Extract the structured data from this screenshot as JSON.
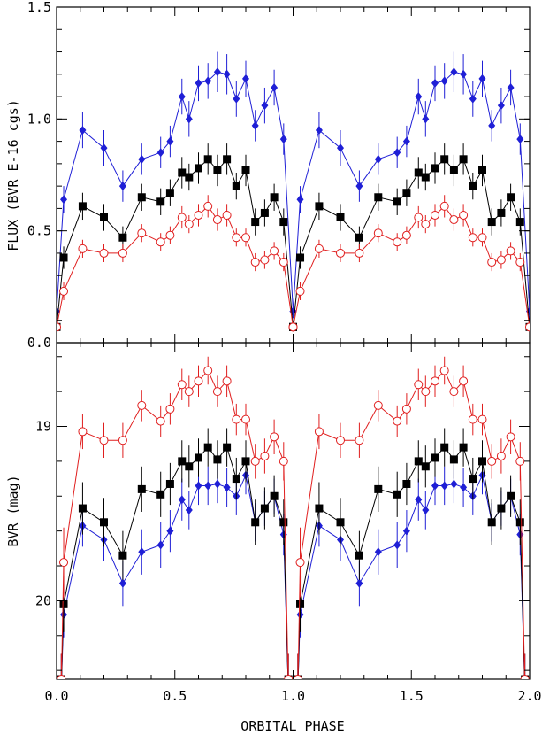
{
  "chart_data": {
    "type": "scatter",
    "xlabel": "ORBITAL PHASE",
    "x_ticks": [
      "0.0",
      "0.5",
      "1.0",
      "1.5",
      "2.0"
    ],
    "xlim": [
      0.0,
      2.0
    ],
    "panels": [
      {
        "name": "flux",
        "ylabel": "FLUX (BVR E-16 cgs)",
        "ylim": [
          0.0,
          1.5
        ],
        "y_ticks": [
          "0.0",
          "0.5",
          "1.0",
          "1.5"
        ],
        "y_tick_values": [
          0.0,
          0.5,
          1.0,
          1.5
        ],
        "inverted": false,
        "series": [
          {
            "band": "B",
            "color": "#1f1fd6",
            "marker": "diamond",
            "x": [
              0.0,
              0.03,
              0.11,
              0.2,
              0.28,
              0.36,
              0.44,
              0.48,
              0.53,
              0.56,
              0.6,
              0.64,
              0.68,
              0.72,
              0.76,
              0.8,
              0.84,
              0.88,
              0.92,
              0.96,
              1.0
            ],
            "y": [
              0.14,
              0.64,
              0.95,
              0.87,
              0.7,
              0.82,
              0.85,
              0.9,
              1.1,
              1.0,
              1.16,
              1.17,
              1.21,
              1.2,
              1.09,
              1.18,
              0.97,
              1.06,
              1.14,
              0.91,
              0.14
            ],
            "err": [
              0.03,
              0.06,
              0.08,
              0.08,
              0.07,
              0.07,
              0.07,
              0.07,
              0.08,
              0.08,
              0.08,
              0.08,
              0.09,
              0.09,
              0.08,
              0.08,
              0.07,
              0.08,
              0.08,
              0.07,
              0.03
            ]
          },
          {
            "band": "V",
            "color": "#000000",
            "marker": "square",
            "x": [
              0.0,
              0.03,
              0.11,
              0.2,
              0.28,
              0.36,
              0.44,
              0.48,
              0.53,
              0.56,
              0.6,
              0.64,
              0.68,
              0.72,
              0.76,
              0.8,
              0.84,
              0.88,
              0.92,
              0.96,
              1.0
            ],
            "y": [
              0.07,
              0.38,
              0.61,
              0.56,
              0.47,
              0.65,
              0.63,
              0.67,
              0.76,
              0.74,
              0.78,
              0.82,
              0.77,
              0.82,
              0.7,
              0.77,
              0.54,
              0.58,
              0.65,
              0.54,
              0.07
            ],
            "err": [
              0.02,
              0.05,
              0.06,
              0.06,
              0.05,
              0.06,
              0.06,
              0.06,
              0.07,
              0.06,
              0.07,
              0.07,
              0.07,
              0.07,
              0.06,
              0.07,
              0.06,
              0.06,
              0.06,
              0.06,
              0.02
            ]
          },
          {
            "band": "R",
            "color": "#e01e1e",
            "marker": "open-circle",
            "x": [
              0.0,
              0.03,
              0.11,
              0.2,
              0.28,
              0.36,
              0.44,
              0.48,
              0.53,
              0.56,
              0.6,
              0.64,
              0.68,
              0.72,
              0.76,
              0.8,
              0.84,
              0.88,
              0.92,
              0.96,
              1.0
            ],
            "y": [
              0.07,
              0.23,
              0.42,
              0.4,
              0.4,
              0.49,
              0.45,
              0.48,
              0.56,
              0.53,
              0.57,
              0.61,
              0.55,
              0.57,
              0.47,
              0.47,
              0.36,
              0.37,
              0.41,
              0.36,
              0.07
            ],
            "err": [
              0.02,
              0.04,
              0.04,
              0.04,
              0.04,
              0.04,
              0.04,
              0.04,
              0.05,
              0.04,
              0.05,
              0.05,
              0.05,
              0.05,
              0.04,
              0.04,
              0.04,
              0.04,
              0.04,
              0.04,
              0.02
            ]
          }
        ]
      },
      {
        "name": "magnitude",
        "ylabel": "BVR (mag)",
        "ylim": [
          18.52,
          20.45
        ],
        "y_ticks": [
          "19",
          "20"
        ],
        "y_tick_values": [
          19.0,
          20.0
        ],
        "inverted": true,
        "series": [
          {
            "band": "B",
            "color": "#1f1fd6",
            "marker": "diamond",
            "x": [
              0.02,
              0.03,
              0.11,
              0.2,
              0.28,
              0.36,
              0.44,
              0.48,
              0.53,
              0.56,
              0.6,
              0.64,
              0.68,
              0.72,
              0.76,
              0.8,
              0.84,
              0.88,
              0.92,
              0.96,
              0.98
            ],
            "y": [
              20.5,
              20.08,
              19.57,
              19.65,
              19.9,
              19.72,
              19.68,
              19.6,
              19.42,
              19.48,
              19.34,
              19.34,
              19.33,
              19.35,
              19.4,
              19.28,
              19.55,
              19.47,
              19.4,
              19.62,
              20.5
            ],
            "err": [
              0.2,
              0.13,
              0.12,
              0.12,
              0.13,
              0.13,
              0.13,
              0.12,
              0.12,
              0.11,
              0.11,
              0.11,
              0.11,
              0.11,
              0.11,
              0.11,
              0.11,
              0.1,
              0.1,
              0.12,
              0.2
            ]
          },
          {
            "band": "V",
            "color": "#000000",
            "marker": "square",
            "x": [
              0.02,
              0.03,
              0.11,
              0.2,
              0.28,
              0.36,
              0.44,
              0.48,
              0.53,
              0.56,
              0.6,
              0.64,
              0.68,
              0.72,
              0.76,
              0.8,
              0.84,
              0.88,
              0.92,
              0.96,
              0.98
            ],
            "y": [
              20.5,
              20.02,
              19.47,
              19.55,
              19.74,
              19.36,
              19.39,
              19.33,
              19.2,
              19.23,
              19.18,
              19.12,
              19.19,
              19.12,
              19.3,
              19.2,
              19.55,
              19.47,
              19.4,
              19.55,
              20.5
            ],
            "err": [
              0.2,
              0.16,
              0.15,
              0.14,
              0.14,
              0.13,
              0.13,
              0.12,
              0.12,
              0.12,
              0.11,
              0.11,
              0.11,
              0.11,
              0.12,
              0.12,
              0.13,
              0.12,
              0.12,
              0.13,
              0.2
            ]
          },
          {
            "band": "R",
            "color": "#e01e1e",
            "marker": "open-circle",
            "x": [
              0.02,
              0.03,
              0.11,
              0.2,
              0.28,
              0.36,
              0.44,
              0.48,
              0.53,
              0.56,
              0.6,
              0.64,
              0.68,
              0.72,
              0.76,
              0.8,
              0.84,
              0.88,
              0.92,
              0.96,
              0.98
            ],
            "y": [
              20.5,
              19.78,
              19.03,
              19.08,
              19.08,
              18.88,
              18.97,
              18.9,
              18.76,
              18.8,
              18.74,
              18.68,
              18.8,
              18.74,
              18.96,
              18.96,
              19.2,
              19.17,
              19.06,
              19.2,
              20.5
            ],
            "err": [
              0.2,
              0.2,
              0.1,
              0.1,
              0.1,
              0.09,
              0.09,
              0.09,
              0.09,
              0.09,
              0.09,
              0.08,
              0.09,
              0.09,
              0.09,
              0.09,
              0.1,
              0.1,
              0.1,
              0.11,
              0.2
            ]
          }
        ]
      }
    ],
    "repeat_period": 1.0,
    "grid": false,
    "legend": false
  }
}
